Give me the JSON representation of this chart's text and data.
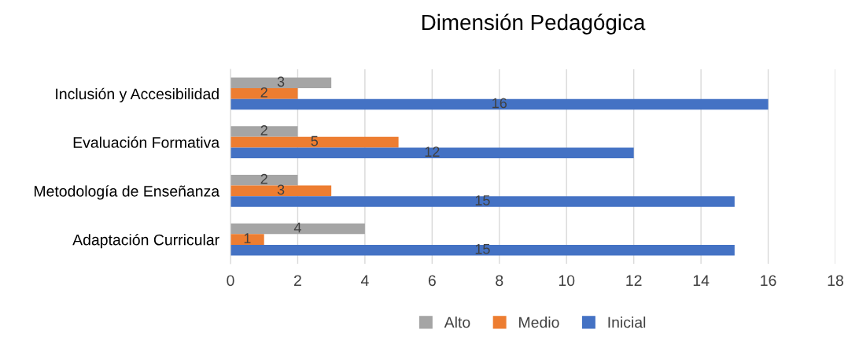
{
  "chart_data": {
    "type": "bar",
    "orientation": "horizontal",
    "title": "Dimensión Pedagógica",
    "categories": [
      "Inclusión y Accesibilidad",
      "Evaluación Formativa",
      "Metodología de Enseñanza",
      "Adaptación Curricular"
    ],
    "series": [
      {
        "name": "Alto",
        "color": "#a5a5a5",
        "values": [
          3,
          2,
          2,
          4
        ]
      },
      {
        "name": "Medio",
        "color": "#ed7d31",
        "values": [
          2,
          5,
          3,
          1
        ]
      },
      {
        "name": "Inicial",
        "color": "#4472c4",
        "values": [
          16,
          12,
          15,
          15
        ]
      }
    ],
    "xlim": [
      0,
      18
    ],
    "xticks": [
      0,
      2,
      4,
      6,
      8,
      10,
      12,
      14,
      16,
      18
    ],
    "grid": "x",
    "legend": "bottom",
    "data_labels": true
  }
}
